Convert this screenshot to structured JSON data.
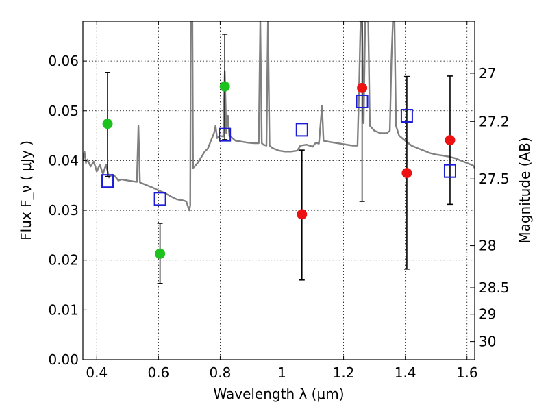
{
  "chart_data": {
    "type": "scatter",
    "xlabel": "Wavelength  λ (μm)",
    "ylabel": "Flux  F_ν  ( μJy )",
    "y2label": "Magnitude (AB)",
    "xlim": [
      0.355,
      1.625
    ],
    "ylim": [
      0.0,
      0.068
    ],
    "grid": true,
    "x_ticks": [
      {
        "value": 0.4,
        "label": "0.4"
      },
      {
        "value": 0.6,
        "label": "0.6"
      },
      {
        "value": 0.8,
        "label": "0.8"
      },
      {
        "value": 1.0,
        "label": "1"
      },
      {
        "value": 1.2,
        "label": "1.2"
      },
      {
        "value": 1.4,
        "label": "1.4"
      },
      {
        "value": 1.6,
        "label": "1.6"
      }
    ],
    "y_ticks": [
      {
        "value": 0.0,
        "label": "0.00"
      },
      {
        "value": 0.01,
        "label": "0.01"
      },
      {
        "value": 0.02,
        "label": "0.02"
      },
      {
        "value": 0.03,
        "label": "0.03"
      },
      {
        "value": 0.04,
        "label": "0.04"
      },
      {
        "value": 0.05,
        "label": "0.05"
      },
      {
        "value": 0.06,
        "label": "0.06"
      }
    ],
    "mag_ticks": [
      {
        "value": 27.0,
        "label": "27"
      },
      {
        "value": 27.2,
        "label": "27.2"
      },
      {
        "value": 27.5,
        "label": "27.5"
      },
      {
        "value": 28.0,
        "label": "28"
      },
      {
        "value": 28.5,
        "label": "28.5"
      },
      {
        "value": 29.0,
        "label": "29"
      },
      {
        "value": 30.0,
        "label": "30"
      }
    ],
    "series": [
      {
        "name": "model spectrum",
        "kind": "line",
        "color": "#808080",
        "points": [
          [
            0.355,
            0.04
          ],
          [
            0.36,
            0.0418
          ],
          [
            0.365,
            0.0395
          ],
          [
            0.37,
            0.0402
          ],
          [
            0.38,
            0.0388
          ],
          [
            0.39,
            0.0398
          ],
          [
            0.4,
            0.0378
          ],
          [
            0.41,
            0.0392
          ],
          [
            0.42,
            0.0373
          ],
          [
            0.43,
            0.0392
          ],
          [
            0.44,
            0.0366
          ],
          [
            0.45,
            0.0372
          ],
          [
            0.46,
            0.0368
          ],
          [
            0.47,
            0.036
          ],
          [
            0.48,
            0.0362
          ],
          [
            0.5,
            0.036
          ],
          [
            0.52,
            0.0358
          ],
          [
            0.53,
            0.0357
          ],
          [
            0.535,
            0.047
          ],
          [
            0.54,
            0.0356
          ],
          [
            0.56,
            0.0351
          ],
          [
            0.58,
            0.0346
          ],
          [
            0.6,
            0.034
          ],
          [
            0.62,
            0.0335
          ],
          [
            0.64,
            0.0328
          ],
          [
            0.66,
            0.0322
          ],
          [
            0.68,
            0.032
          ],
          [
            0.69,
            0.0318
          ],
          [
            0.7,
            0.03
          ],
          [
            0.703,
            0.031
          ],
          [
            0.705,
            0.068
          ],
          [
            0.71,
            0.068
          ],
          [
            0.712,
            0.0385
          ],
          [
            0.72,
            0.039
          ],
          [
            0.73,
            0.0398
          ],
          [
            0.74,
            0.0408
          ],
          [
            0.75,
            0.0418
          ],
          [
            0.76,
            0.0424
          ],
          [
            0.77,
            0.044
          ],
          [
            0.78,
            0.0455
          ],
          [
            0.785,
            0.047
          ],
          [
            0.79,
            0.0445
          ],
          [
            0.8,
            0.045
          ],
          [
            0.81,
            0.0448
          ],
          [
            0.815,
            0.058
          ],
          [
            0.82,
            0.0455
          ],
          [
            0.825,
            0.049
          ],
          [
            0.83,
            0.045
          ],
          [
            0.85,
            0.044
          ],
          [
            0.87,
            0.0438
          ],
          [
            0.89,
            0.0436
          ],
          [
            0.91,
            0.0435
          ],
          [
            0.925,
            0.0435
          ],
          [
            0.93,
            0.068
          ],
          [
            0.935,
            0.0435
          ],
          [
            0.94,
            0.0432
          ],
          [
            0.95,
            0.043
          ],
          [
            0.955,
            0.068
          ],
          [
            0.96,
            0.043
          ],
          [
            0.97,
            0.0425
          ],
          [
            0.99,
            0.042
          ],
          [
            1.01,
            0.0418
          ],
          [
            1.03,
            0.0418
          ],
          [
            1.05,
            0.042
          ],
          [
            1.06,
            0.043
          ],
          [
            1.08,
            0.0432
          ],
          [
            1.1,
            0.0428
          ],
          [
            1.11,
            0.0436
          ],
          [
            1.12,
            0.0434
          ],
          [
            1.13,
            0.051
          ],
          [
            1.135,
            0.044
          ],
          [
            1.15,
            0.0438
          ],
          [
            1.17,
            0.0436
          ],
          [
            1.19,
            0.0434
          ],
          [
            1.21,
            0.0432
          ],
          [
            1.23,
            0.043
          ],
          [
            1.245,
            0.043
          ],
          [
            1.25,
            0.054
          ],
          [
            1.255,
            0.068
          ],
          [
            1.26,
            0.068
          ],
          [
            1.265,
            0.0475
          ],
          [
            1.27,
            0.068
          ],
          [
            1.28,
            0.068
          ],
          [
            1.285,
            0.047
          ],
          [
            1.3,
            0.046
          ],
          [
            1.32,
            0.0455
          ],
          [
            1.34,
            0.0455
          ],
          [
            1.35,
            0.046
          ],
          [
            1.355,
            0.06
          ],
          [
            1.36,
            0.068
          ],
          [
            1.365,
            0.068
          ],
          [
            1.37,
            0.047
          ],
          [
            1.38,
            0.045
          ],
          [
            1.4,
            0.044
          ],
          [
            1.42,
            0.043
          ],
          [
            1.44,
            0.0425
          ],
          [
            1.46,
            0.042
          ],
          [
            1.48,
            0.0415
          ],
          [
            1.5,
            0.0412
          ],
          [
            1.52,
            0.041
          ],
          [
            1.54,
            0.0408
          ],
          [
            1.56,
            0.0405
          ],
          [
            1.58,
            0.04
          ],
          [
            1.6,
            0.0395
          ],
          [
            1.62,
            0.039
          ],
          [
            1.625,
            0.0385
          ]
        ]
      },
      {
        "name": "green detections",
        "kind": "points",
        "color": "#1ec21e",
        "points": [
          {
            "x": 0.435,
            "y": 0.0474
          },
          {
            "x": 0.605,
            "y": 0.0213
          },
          {
            "x": 0.815,
            "y": 0.0549
          }
        ]
      },
      {
        "name": "red detections",
        "kind": "points",
        "color": "#ee1111",
        "points": [
          {
            "x": 1.065,
            "y": 0.0292
          },
          {
            "x": 1.26,
            "y": 0.0546
          },
          {
            "x": 1.405,
            "y": 0.0375
          },
          {
            "x": 1.545,
            "y": 0.0441
          }
        ]
      },
      {
        "name": "model photometry",
        "kind": "open-squares",
        "color": "#1c1cd6",
        "points": [
          {
            "x": 0.435,
            "y": 0.0359
          },
          {
            "x": 0.605,
            "y": 0.0323
          },
          {
            "x": 0.815,
            "y": 0.0452
          },
          {
            "x": 1.065,
            "y": 0.0462
          },
          {
            "x": 1.26,
            "y": 0.0519
          },
          {
            "x": 1.405,
            "y": 0.049
          },
          {
            "x": 1.545,
            "y": 0.0379
          }
        ]
      }
    ],
    "error_bars": [
      {
        "x": 0.435,
        "low": 0.0368,
        "high": 0.0577
      },
      {
        "x": 0.605,
        "low": 0.0153,
        "high": 0.0274
      },
      {
        "x": 0.815,
        "low": 0.0442,
        "high": 0.0654
      },
      {
        "x": 1.065,
        "low": 0.016,
        "high": 0.0421
      },
      {
        "x": 1.26,
        "low": 0.0318,
        "high": 0.068
      },
      {
        "x": 1.405,
        "low": 0.0182,
        "high": 0.0569
      },
      {
        "x": 1.545,
        "low": 0.0312,
        "high": 0.057
      }
    ]
  }
}
